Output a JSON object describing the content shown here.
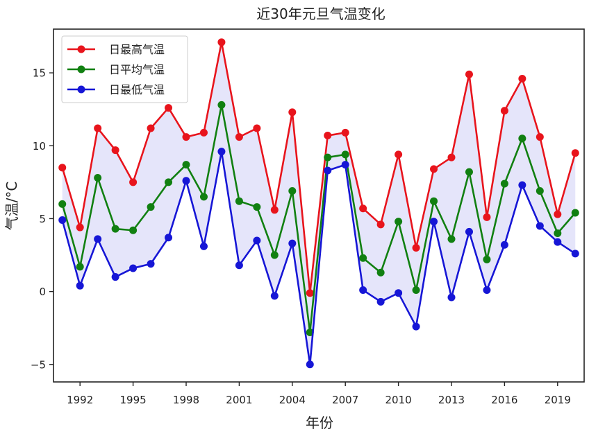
{
  "chart_data": {
    "type": "line",
    "title": "近30年元旦气温变化",
    "xlabel": "年份",
    "ylabel": "气温/°C",
    "x": [
      1991,
      1992,
      1993,
      1994,
      1995,
      1996,
      1997,
      1998,
      1999,
      2000,
      2001,
      2002,
      2003,
      2004,
      2005,
      2006,
      2007,
      2008,
      2009,
      2010,
      2011,
      2012,
      2013,
      2014,
      2015,
      2016,
      2017,
      2018,
      2019,
      2020
    ],
    "xticks": [
      1992,
      1995,
      1998,
      2001,
      2004,
      2007,
      2010,
      2013,
      2016,
      2019
    ],
    "yticks": [
      -5,
      0,
      5,
      10,
      15
    ],
    "xlim": [
      1990.5,
      2020.5
    ],
    "ylim": [
      -6.2,
      18.0
    ],
    "grid": false,
    "legend_position": "upper-left",
    "fill_between": {
      "upper": "日最高气温",
      "lower": "日最低气温",
      "color": "#e5e5fa"
    },
    "series": [
      {
        "name": "日最高气温",
        "color": "#e8141c",
        "values": [
          8.5,
          4.4,
          11.2,
          9.7,
          7.5,
          11.2,
          12.6,
          10.6,
          10.9,
          17.1,
          10.6,
          11.2,
          5.6,
          12.3,
          -0.1,
          10.7,
          10.9,
          5.7,
          4.6,
          9.4,
          3.0,
          8.4,
          9.2,
          14.9,
          5.1,
          12.4,
          14.6,
          10.6,
          5.3,
          9.5
        ]
      },
      {
        "name": "日平均气温",
        "color": "#118011",
        "values": [
          6.0,
          1.7,
          7.8,
          4.3,
          4.2,
          5.8,
          7.5,
          8.7,
          6.5,
          12.8,
          6.2,
          5.8,
          2.5,
          6.9,
          -2.8,
          9.2,
          9.4,
          2.3,
          1.3,
          4.8,
          0.1,
          6.2,
          3.6,
          8.2,
          2.2,
          7.4,
          10.5,
          6.9,
          4.0,
          5.4
        ]
      },
      {
        "name": "日最低气温",
        "color": "#1616d6",
        "values": [
          4.9,
          0.4,
          3.6,
          1.0,
          1.6,
          1.9,
          3.7,
          7.6,
          3.1,
          9.6,
          1.8,
          3.5,
          -0.3,
          3.3,
          -5.0,
          8.3,
          8.7,
          0.1,
          -0.7,
          -0.1,
          -2.4,
          4.8,
          -0.4,
          4.1,
          0.1,
          3.2,
          7.3,
          4.5,
          3.4,
          2.6
        ]
      }
    ]
  }
}
